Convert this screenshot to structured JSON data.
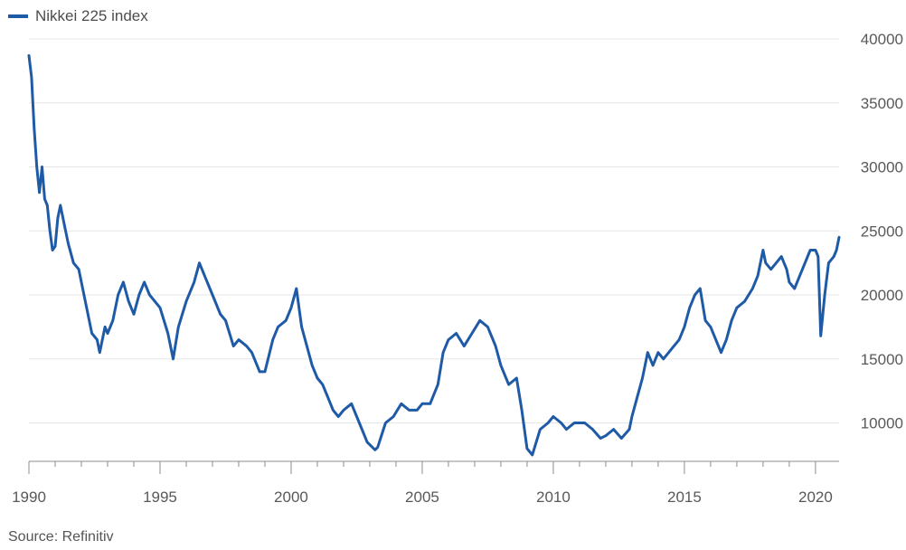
{
  "chart_data": {
    "type": "line",
    "title": "",
    "xlabel": "",
    "ylabel": "",
    "source": "Source: Refinitiv",
    "grid": true,
    "legend_position": "top-left",
    "xlim": [
      1990.0,
      2020.9
    ],
    "ylim": [
      7000,
      40000
    ],
    "x_ticks": [
      1990,
      1995,
      2000,
      2005,
      2010,
      2015,
      2020
    ],
    "y_ticks": [
      10000,
      15000,
      20000,
      25000,
      30000,
      35000,
      40000
    ],
    "series": [
      {
        "name": "Nikkei 225 index",
        "color": "#1f5aa6",
        "x": [
          1990.0,
          1990.1,
          1990.2,
          1990.3,
          1990.4,
          1990.5,
          1990.6,
          1990.7,
          1990.8,
          1990.9,
          1991.0,
          1991.1,
          1991.2,
          1991.35,
          1991.5,
          1991.7,
          1991.9,
          1992.0,
          1992.2,
          1992.4,
          1992.6,
          1992.7,
          1992.9,
          1993.0,
          1993.2,
          1993.4,
          1993.6,
          1993.8,
          1994.0,
          1994.2,
          1994.4,
          1994.6,
          1994.8,
          1995.0,
          1995.3,
          1995.5,
          1995.7,
          1996.0,
          1996.3,
          1996.5,
          1996.8,
          1997.0,
          1997.3,
          1997.5,
          1997.8,
          1998.0,
          1998.3,
          1998.5,
          1998.8,
          1999.0,
          1999.3,
          1999.5,
          1999.8,
          2000.0,
          2000.2,
          2000.4,
          2000.6,
          2000.8,
          2001.0,
          2001.2,
          2001.4,
          2001.6,
          2001.8,
          2002.0,
          2002.3,
          2002.6,
          2002.9,
          2003.2,
          2003.3,
          2003.6,
          2003.9,
          2004.2,
          2004.5,
          2004.8,
          2005.0,
          2005.3,
          2005.6,
          2005.8,
          2006.0,
          2006.3,
          2006.6,
          2006.9,
          2007.2,
          2007.5,
          2007.8,
          2008.0,
          2008.3,
          2008.6,
          2008.8,
          2009.0,
          2009.2,
          2009.5,
          2009.8,
          2010.0,
          2010.3,
          2010.5,
          2010.8,
          2011.0,
          2011.2,
          2011.5,
          2011.8,
          2012.0,
          2012.3,
          2012.6,
          2012.9,
          2013.0,
          2013.2,
          2013.4,
          2013.6,
          2013.8,
          2014.0,
          2014.2,
          2014.4,
          2014.6,
          2014.8,
          2015.0,
          2015.2,
          2015.4,
          2015.6,
          2015.8,
          2016.0,
          2016.2,
          2016.4,
          2016.6,
          2016.8,
          2017.0,
          2017.3,
          2017.6,
          2017.8,
          2018.0,
          2018.1,
          2018.3,
          2018.5,
          2018.7,
          2018.9,
          2019.0,
          2019.2,
          2019.4,
          2019.6,
          2019.8,
          2020.0,
          2020.1,
          2020.2,
          2020.35,
          2020.5,
          2020.7,
          2020.8,
          2020.9
        ],
        "values": [
          38700,
          37000,
          33000,
          30000,
          28000,
          30000,
          27500,
          27000,
          25000,
          23500,
          23800,
          26000,
          27000,
          25500,
          24000,
          22500,
          22000,
          21000,
          19000,
          17000,
          16500,
          15500,
          17500,
          17000,
          18000,
          20000,
          21000,
          19500,
          18500,
          20000,
          21000,
          20000,
          19500,
          19000,
          17000,
          15000,
          17500,
          19500,
          21000,
          22500,
          21000,
          20000,
          18500,
          18000,
          16000,
          16500,
          16000,
          15500,
          14000,
          14000,
          16500,
          17500,
          18000,
          19000,
          20500,
          17500,
          16000,
          14500,
          13500,
          13000,
          12000,
          11000,
          10500,
          11000,
          11500,
          10000,
          8500,
          7900,
          8100,
          10000,
          10500,
          11500,
          11000,
          11000,
          11500,
          11500,
          13000,
          15500,
          16500,
          17000,
          16000,
          17000,
          18000,
          17500,
          16000,
          14500,
          13000,
          13500,
          11000,
          8000,
          7500,
          9500,
          10000,
          10500,
          10000,
          9500,
          10000,
          10000,
          10000,
          9500,
          8800,
          9000,
          9500,
          8800,
          9500,
          10500,
          12000,
          13500,
          15500,
          14500,
          15500,
          15000,
          15500,
          16000,
          16500,
          17500,
          19000,
          20000,
          20500,
          18000,
          17500,
          16500,
          15500,
          16500,
          18000,
          19000,
          19500,
          20500,
          21500,
          23500,
          22500,
          22000,
          22500,
          23000,
          22000,
          21000,
          20500,
          21500,
          22500,
          23500,
          23500,
          23000,
          16800,
          20000,
          22500,
          23000,
          23500,
          24500
        ]
      }
    ]
  }
}
